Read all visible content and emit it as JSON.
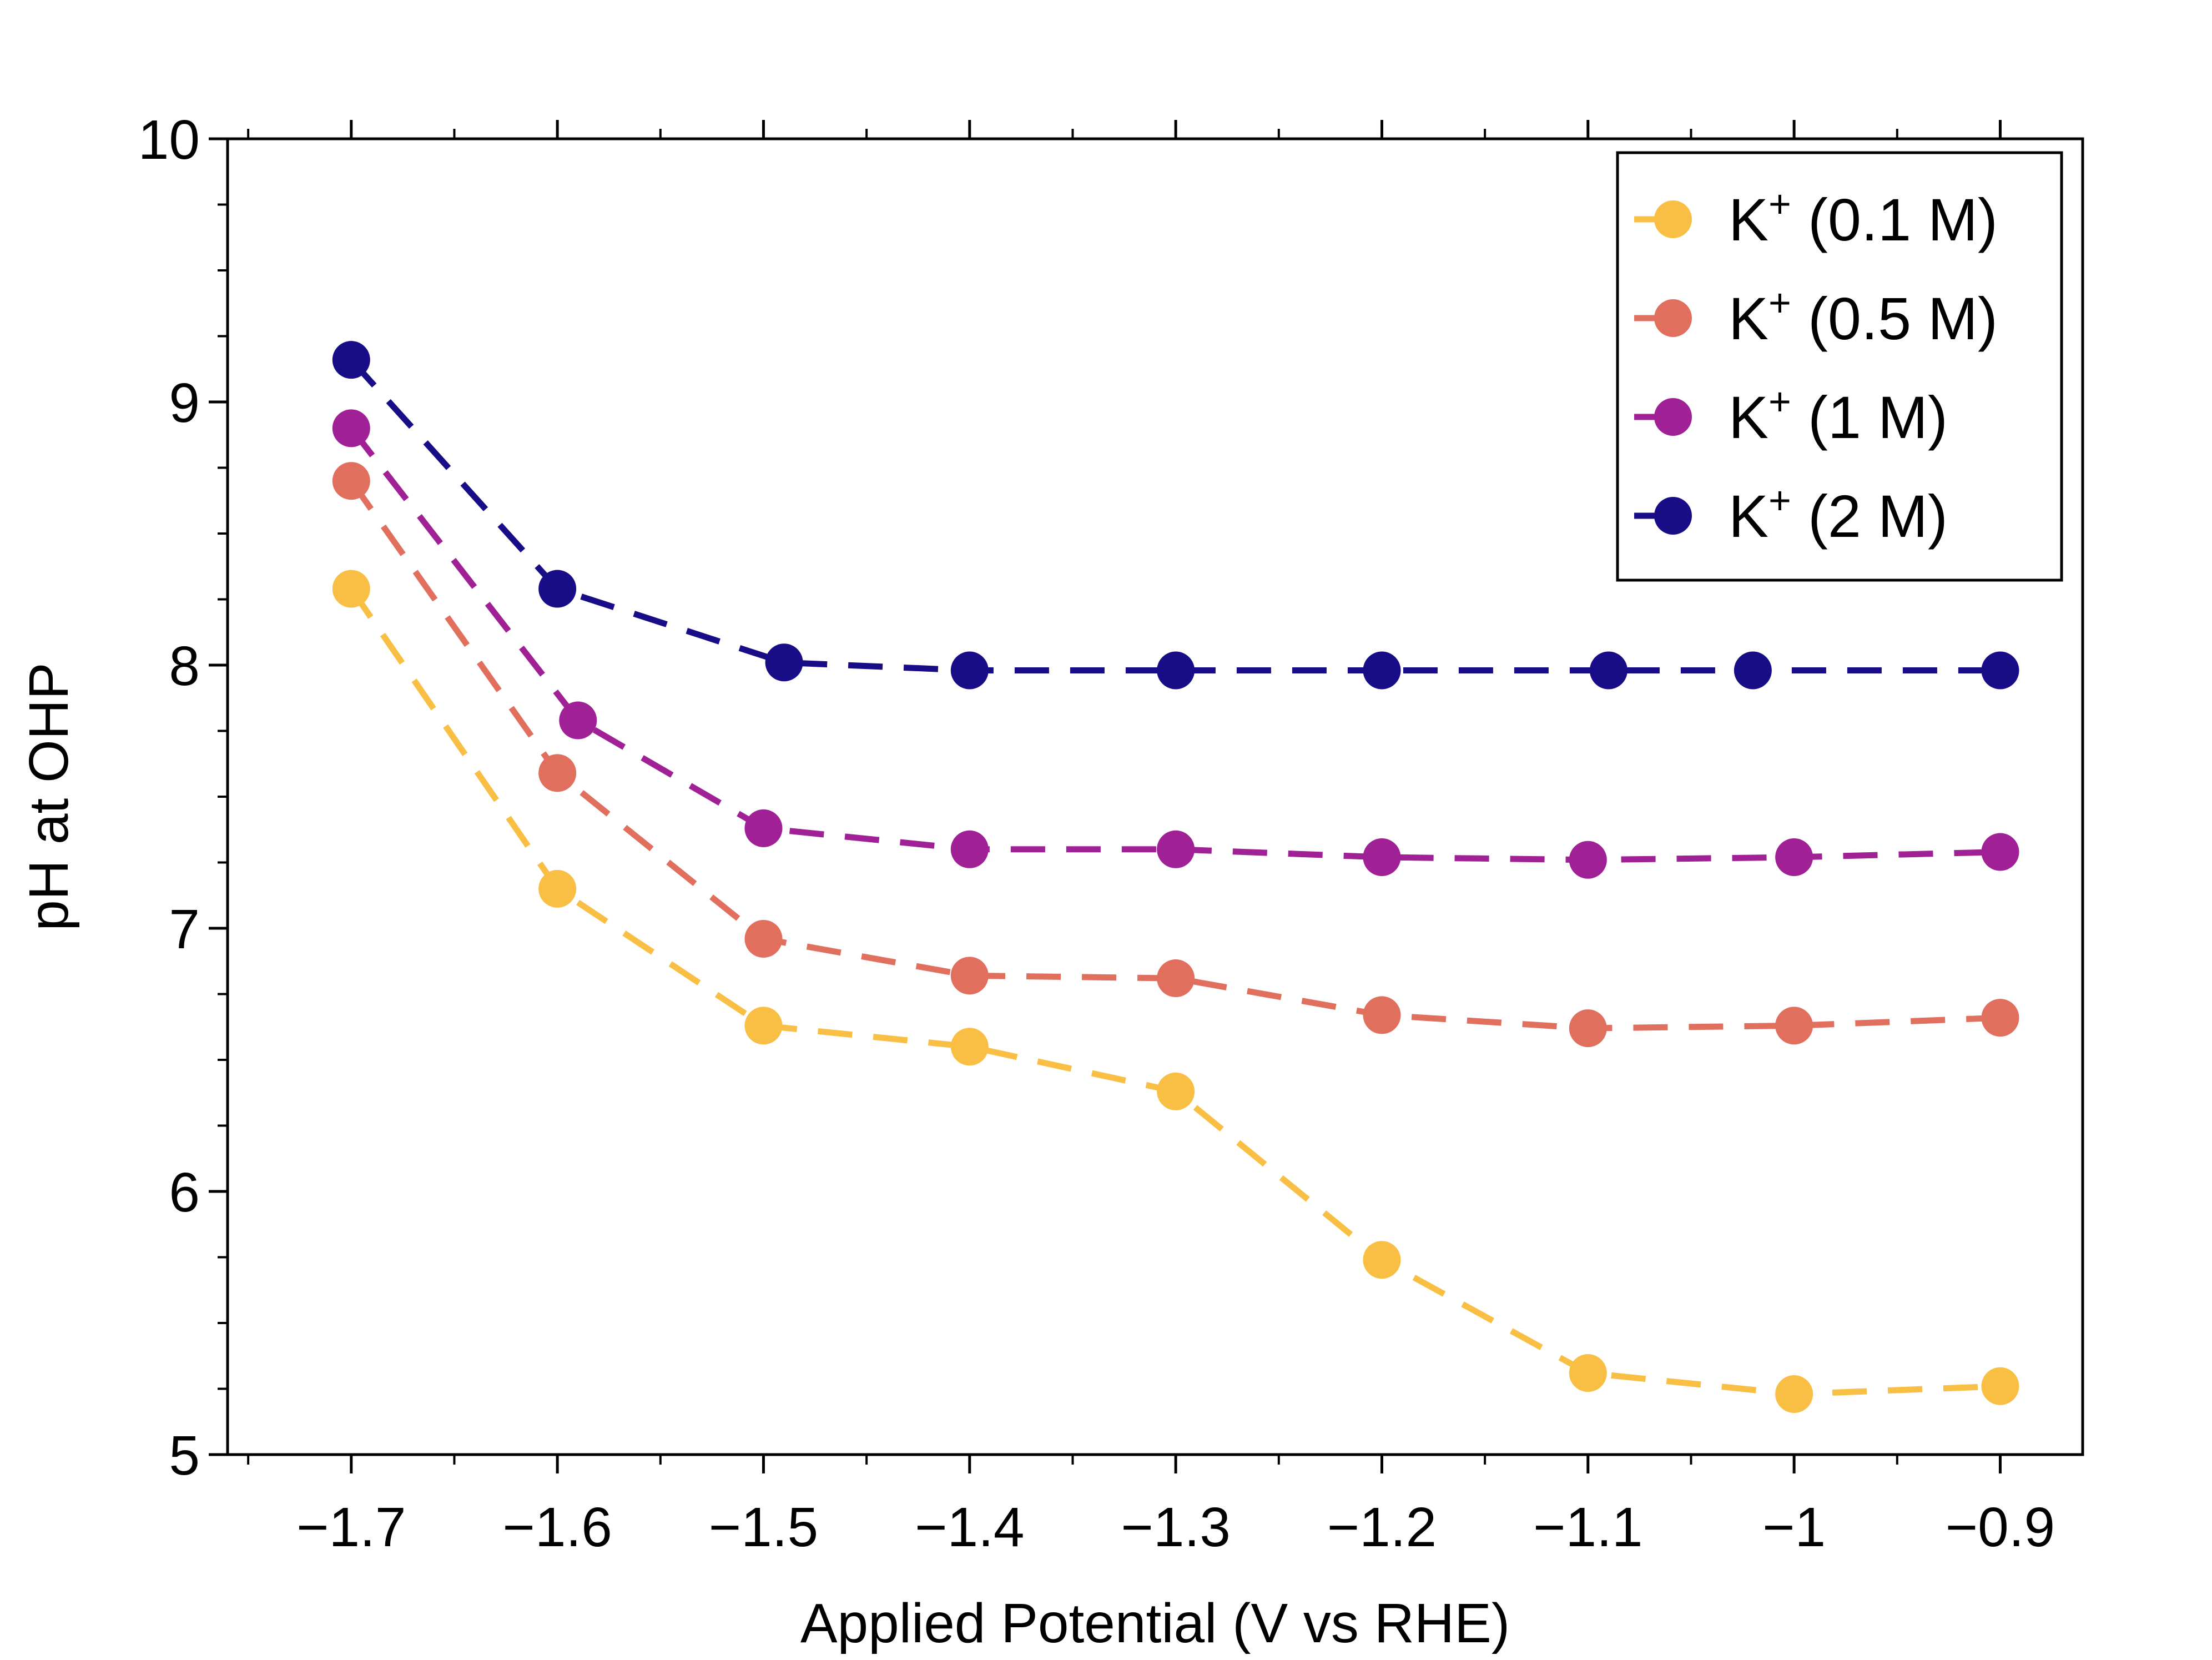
{
  "chart_data": {
    "type": "line",
    "title": "",
    "xlabel": "Applied Potential (V vs RHE)",
    "ylabel": "pH at OHP",
    "xlim": [
      -1.76,
      -0.86
    ],
    "ylim": [
      5,
      10
    ],
    "x_ticks": [
      -1.7,
      -1.6,
      -1.5,
      -1.4,
      -1.3,
      -1.2,
      -1.1,
      -1.0,
      -0.9
    ],
    "x_tick_labels": [
      "−1.7",
      "−1.6",
      "−1.5",
      "−1.4",
      "−1.3",
      "−1.2",
      "−1.1",
      "−1",
      "−0.9"
    ],
    "y_ticks": [
      5,
      6,
      7,
      8,
      9,
      10
    ],
    "y_tick_labels": [
      "5",
      "6",
      "7",
      "8",
      "9",
      "10"
    ],
    "grid": false,
    "legend_position": "top-right",
    "line_style": "dashed",
    "series": [
      {
        "name_prefix": "K",
        "name_sup": "+",
        "name_suffix": " (0.1 M)",
        "color": "#F9BF45",
        "x": [
          -1.7,
          -1.6,
          -1.5,
          -1.4,
          -1.3,
          -1.2,
          -1.1,
          -1.0,
          -0.9
        ],
        "y": [
          8.29,
          7.15,
          6.63,
          6.55,
          6.38,
          5.74,
          5.31,
          5.23,
          5.26
        ]
      },
      {
        "name_prefix": "K",
        "name_sup": "+",
        "name_suffix": " (0.5 M)",
        "color": "#E16F5E",
        "x": [
          -1.7,
          -1.6,
          -1.5,
          -1.4,
          -1.3,
          -1.2,
          -1.1,
          -1.0,
          -0.9
        ],
        "y": [
          8.7,
          7.59,
          6.96,
          6.82,
          6.81,
          6.67,
          6.62,
          6.63,
          6.66
        ]
      },
      {
        "name_prefix": "K",
        "name_sup": "+",
        "name_suffix": " (1 M)",
        "color": "#A02095",
        "x": [
          -1.7,
          -1.59,
          -1.5,
          -1.4,
          -1.3,
          -1.2,
          -1.1,
          -1.0,
          -0.9
        ],
        "y": [
          8.9,
          7.79,
          7.38,
          7.3,
          7.3,
          7.27,
          7.26,
          7.27,
          7.29
        ]
      },
      {
        "name_prefix": "K",
        "name_sup": "+",
        "name_suffix": " (2 M)",
        "color": "#190D87",
        "x": [
          -1.7,
          -1.6,
          -1.49,
          -1.4,
          -1.3,
          -1.2,
          -1.09,
          -1.02,
          -0.9
        ],
        "y": [
          9.16,
          8.29,
          8.01,
          7.98,
          7.98,
          7.98,
          7.98,
          7.98,
          7.98
        ]
      }
    ]
  }
}
